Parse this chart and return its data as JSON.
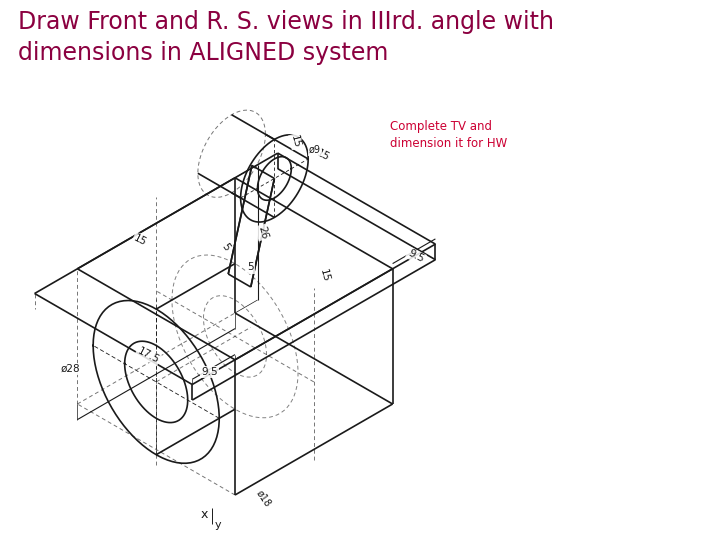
{
  "title_line1": "Draw Front and R. S. views in IIIrd. angle with",
  "title_line2": "dimensions in ALIGNED system",
  "title_color": "#8B0040",
  "title_fontsize": 17,
  "annotation_text": "Complete TV and\ndimension it for HW",
  "annotation_color": "#CC0033",
  "annotation_fontsize": 8.5,
  "bg_color": "#ffffff",
  "drawing_color": "#1a1a1a"
}
